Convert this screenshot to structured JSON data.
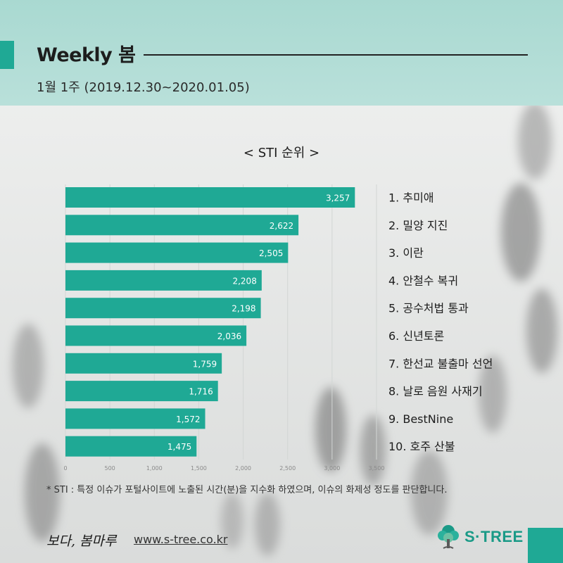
{
  "header": {
    "title": "Weekly 봄",
    "subtitle": "1월 1주 (2019.12.30~2020.01.05)"
  },
  "chart_title": "< STI 순위 >",
  "footnote": "* STI : 특정 이슈가 포털사이트에 노출된 시간(분)을 지수화 하였으며, 이슈의 화제성 정도를 판단합니다.",
  "brand": {
    "signature": "보다, 봄마루",
    "url": "www.s-tree.co.kr",
    "logo_text": "S·TREE",
    "logo_icon": "tree-icon"
  },
  "colors": {
    "bar": "#1fa995",
    "accent": "#1fa995",
    "header_band": "#b2ddd6"
  },
  "chart_data": {
    "type": "bar",
    "orientation": "horizontal",
    "title": "< STI 순위 >",
    "categories": [
      "1. 추미애",
      "2. 밀양 지진",
      "3. 이란",
      "4. 안철수 복귀",
      "5. 공수처법 통과",
      "6. 신년토론",
      "7. 한선교 불출마 선언",
      "8. 날로 음원 사재기",
      "9. BestNine",
      "10. 호주 산불"
    ],
    "values": [
      3257,
      2622,
      2505,
      2208,
      2198,
      2036,
      1759,
      1716,
      1572,
      1475
    ],
    "value_labels": [
      "3,257",
      "2,622",
      "2,505",
      "2,208",
      "2,198",
      "2,036",
      "1,759",
      "1,716",
      "1,572",
      "1,475"
    ],
    "xlim": [
      0,
      3500
    ],
    "x_ticks": [
      0,
      500,
      1000,
      1500,
      2000,
      2500,
      3000,
      3500
    ],
    "x_tick_labels": [
      "0",
      "500",
      "1,000",
      "1,500",
      "2,000",
      "2,500",
      "3,000",
      "3,500"
    ],
    "grid": true,
    "legend": "none"
  }
}
